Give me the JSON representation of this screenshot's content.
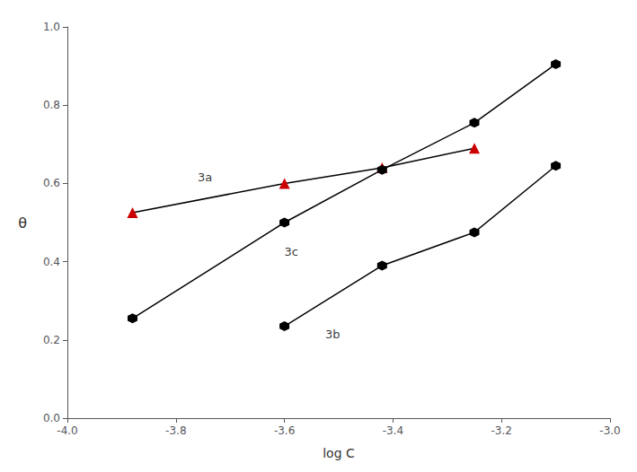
{
  "chart_data": {
    "type": "line",
    "xlabel": "log C",
    "ylabel": "θ",
    "series": [
      {
        "x": [
          -3.88,
          -3.6,
          -3.42,
          -3.25
        ],
        "values": [
          0.525,
          0.6,
          0.64,
          0.69
        ],
        "color": "#000000",
        "colors": [
          "#cc0000",
          "#cc0000",
          "#cc0000",
          "#cc0000"
        ],
        "marker": "triangle",
        "line_style": "solid"
      },
      {
        "x": [
          -3.88,
          -3.6,
          -3.42,
          -3.25,
          -3.1
        ],
        "values": [
          0.255,
          0.5,
          0.635,
          0.755,
          0.905
        ],
        "color": "#000000",
        "marker": "hexagon",
        "line_style": "solid"
      },
      {
        "x": [
          -3.6,
          -3.42,
          -3.25,
          -3.1
        ],
        "values": [
          0.235,
          0.39,
          0.475,
          0.645
        ],
        "color": "#000000",
        "marker": "hexagon",
        "line_style": "solid"
      }
    ],
    "annotations": [
      {
        "text": "3a",
        "x": -3.76,
        "y": 0.615
      },
      {
        "text": "3c",
        "x": -3.6,
        "y": 0.425
      },
      {
        "text": "3b",
        "x": -3.525,
        "y": 0.215
      }
    ],
    "xlim": [
      -4.0,
      -3.0
    ],
    "ylim": [
      0.0,
      1.0
    ],
    "xticks": [
      {
        "value": -4.0,
        "label": "-4.0"
      },
      -3.8,
      -3.6,
      -3.4,
      -3.2,
      {
        "value": -3.0,
        "label": "-3.0"
      }
    ],
    "yticks": [
      {
        "value": 0.0,
        "label": "0.0"
      },
      0.2,
      0.4,
      0.6,
      0.8,
      {
        "value": 1.0,
        "label": "1.0"
      }
    ],
    "grid": false
  }
}
